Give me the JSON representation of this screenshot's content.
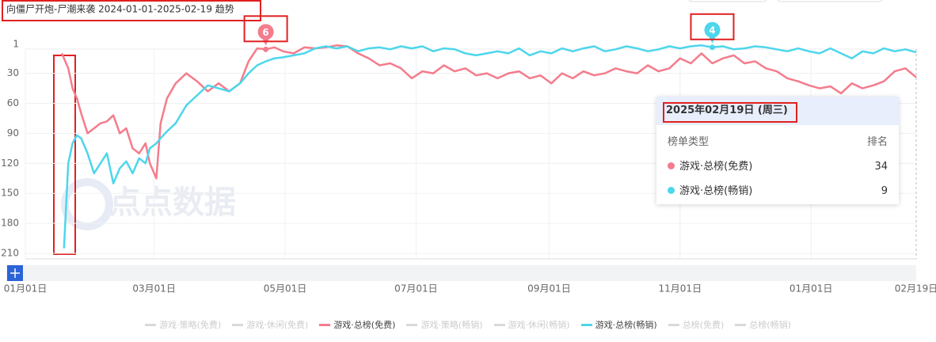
{
  "chart_data": {
    "type": "line",
    "title": "向僵尸开炮-尸潮来袭 2024-01-01-2025-02-19 趋势",
    "watermark": "点点数据",
    "x": [
      17,
      18,
      20,
      22,
      24,
      26,
      29,
      32,
      35,
      38,
      41,
      44,
      47,
      50,
      53,
      56,
      58,
      61,
      63,
      66,
      70,
      75,
      80,
      85,
      90,
      95,
      100,
      104,
      108,
      112,
      116,
      120,
      125,
      130,
      135,
      140,
      145,
      150,
      155,
      160,
      165,
      170,
      175,
      180,
      185,
      190,
      195,
      200,
      205,
      210,
      215,
      220,
      225,
      230,
      235,
      240,
      245,
      250,
      255,
      260,
      265,
      270,
      275,
      280,
      285,
      290,
      295,
      300,
      305,
      310,
      315,
      320,
      325,
      330,
      335,
      340,
      345,
      350,
      355,
      360,
      365,
      370,
      375,
      380,
      385,
      390,
      395,
      400,
      405,
      410,
      415
    ],
    "xlim": [
      0,
      415
    ],
    "xticks": [
      {
        "value": 0,
        "label": "01月01日"
      },
      {
        "value": 60,
        "label": "03月01日"
      },
      {
        "value": 121,
        "label": "05月01日"
      },
      {
        "value": 182,
        "label": "07月01日"
      },
      {
        "value": 244,
        "label": "09月01日"
      },
      {
        "value": 305,
        "label": "11月01日"
      },
      {
        "value": 366,
        "label": "01月01日"
      },
      {
        "value": 415,
        "label": "02月19日"
      }
    ],
    "ylim": [
      1,
      210
    ],
    "y_inverted": true,
    "yticks": [
      1,
      30,
      60,
      90,
      120,
      150,
      180,
      210
    ],
    "grid": true,
    "series": [
      {
        "name": "游戏·策略(免费)",
        "color": "#d9d9d9",
        "visible": false
      },
      {
        "name": "游戏·休闲(免费)",
        "color": "#d9d9d9",
        "visible": false
      },
      {
        "name": "游戏·总榜(免费)",
        "color": "#f47c8c",
        "visible": true,
        "values": [
          10,
          15,
          25,
          45,
          55,
          70,
          90,
          85,
          80,
          78,
          72,
          90,
          85,
          105,
          110,
          100,
          120,
          135,
          80,
          55,
          40,
          30,
          38,
          48,
          40,
          48,
          40,
          18,
          5,
          6,
          4,
          8,
          10,
          4,
          5,
          4,
          2,
          3,
          10,
          15,
          22,
          20,
          25,
          35,
          28,
          30,
          22,
          28,
          25,
          32,
          30,
          35,
          30,
          28,
          35,
          32,
          40,
          30,
          35,
          28,
          32,
          30,
          25,
          28,
          30,
          22,
          28,
          25,
          15,
          20,
          10,
          20,
          15,
          12,
          20,
          18,
          25,
          28,
          35,
          38,
          42,
          45,
          43,
          50,
          40,
          45,
          42,
          38,
          28,
          25,
          34
        ]
      },
      {
        "name": "游戏·策略(畅销)",
        "color": "#d9d9d9",
        "visible": false
      },
      {
        "name": "游戏·休闲(畅销)",
        "color": "#d9d9d9",
        "visible": false
      },
      {
        "name": "游戏·总榜(畅销)",
        "color": "#4dd6ec",
        "visible": true,
        "values": [
          null,
          205,
          120,
          100,
          92,
          95,
          110,
          130,
          120,
          110,
          140,
          125,
          118,
          130,
          115,
          120,
          105,
          100,
          95,
          88,
          80,
          62,
          52,
          42,
          45,
          48,
          40,
          30,
          22,
          18,
          15,
          14,
          12,
          10,
          5,
          3,
          5,
          3,
          8,
          5,
          4,
          6,
          3,
          5,
          3,
          8,
          5,
          6,
          10,
          12,
          10,
          8,
          10,
          5,
          12,
          8,
          10,
          5,
          8,
          5,
          3,
          8,
          6,
          3,
          5,
          8,
          6,
          3,
          5,
          3,
          2,
          4,
          3,
          6,
          5,
          3,
          4,
          6,
          8,
          5,
          8,
          10,
          5,
          10,
          15,
          8,
          10,
          5,
          8,
          6,
          9
        ]
      },
      {
        "name": "总榜(免费)",
        "color": "#d9d9d9",
        "visible": false
      },
      {
        "name": "总榜(畅销)",
        "color": "#d9d9d9",
        "visible": false
      }
    ],
    "annotations": [
      {
        "series": 2,
        "x": 112,
        "y": 6
      },
      {
        "series": 5,
        "x": 320,
        "y": 4
      }
    ],
    "tooltip": {
      "title": "2025年02月19日 (周三)",
      "header": [
        "榜单类型",
        "排名"
      ]
    }
  }
}
